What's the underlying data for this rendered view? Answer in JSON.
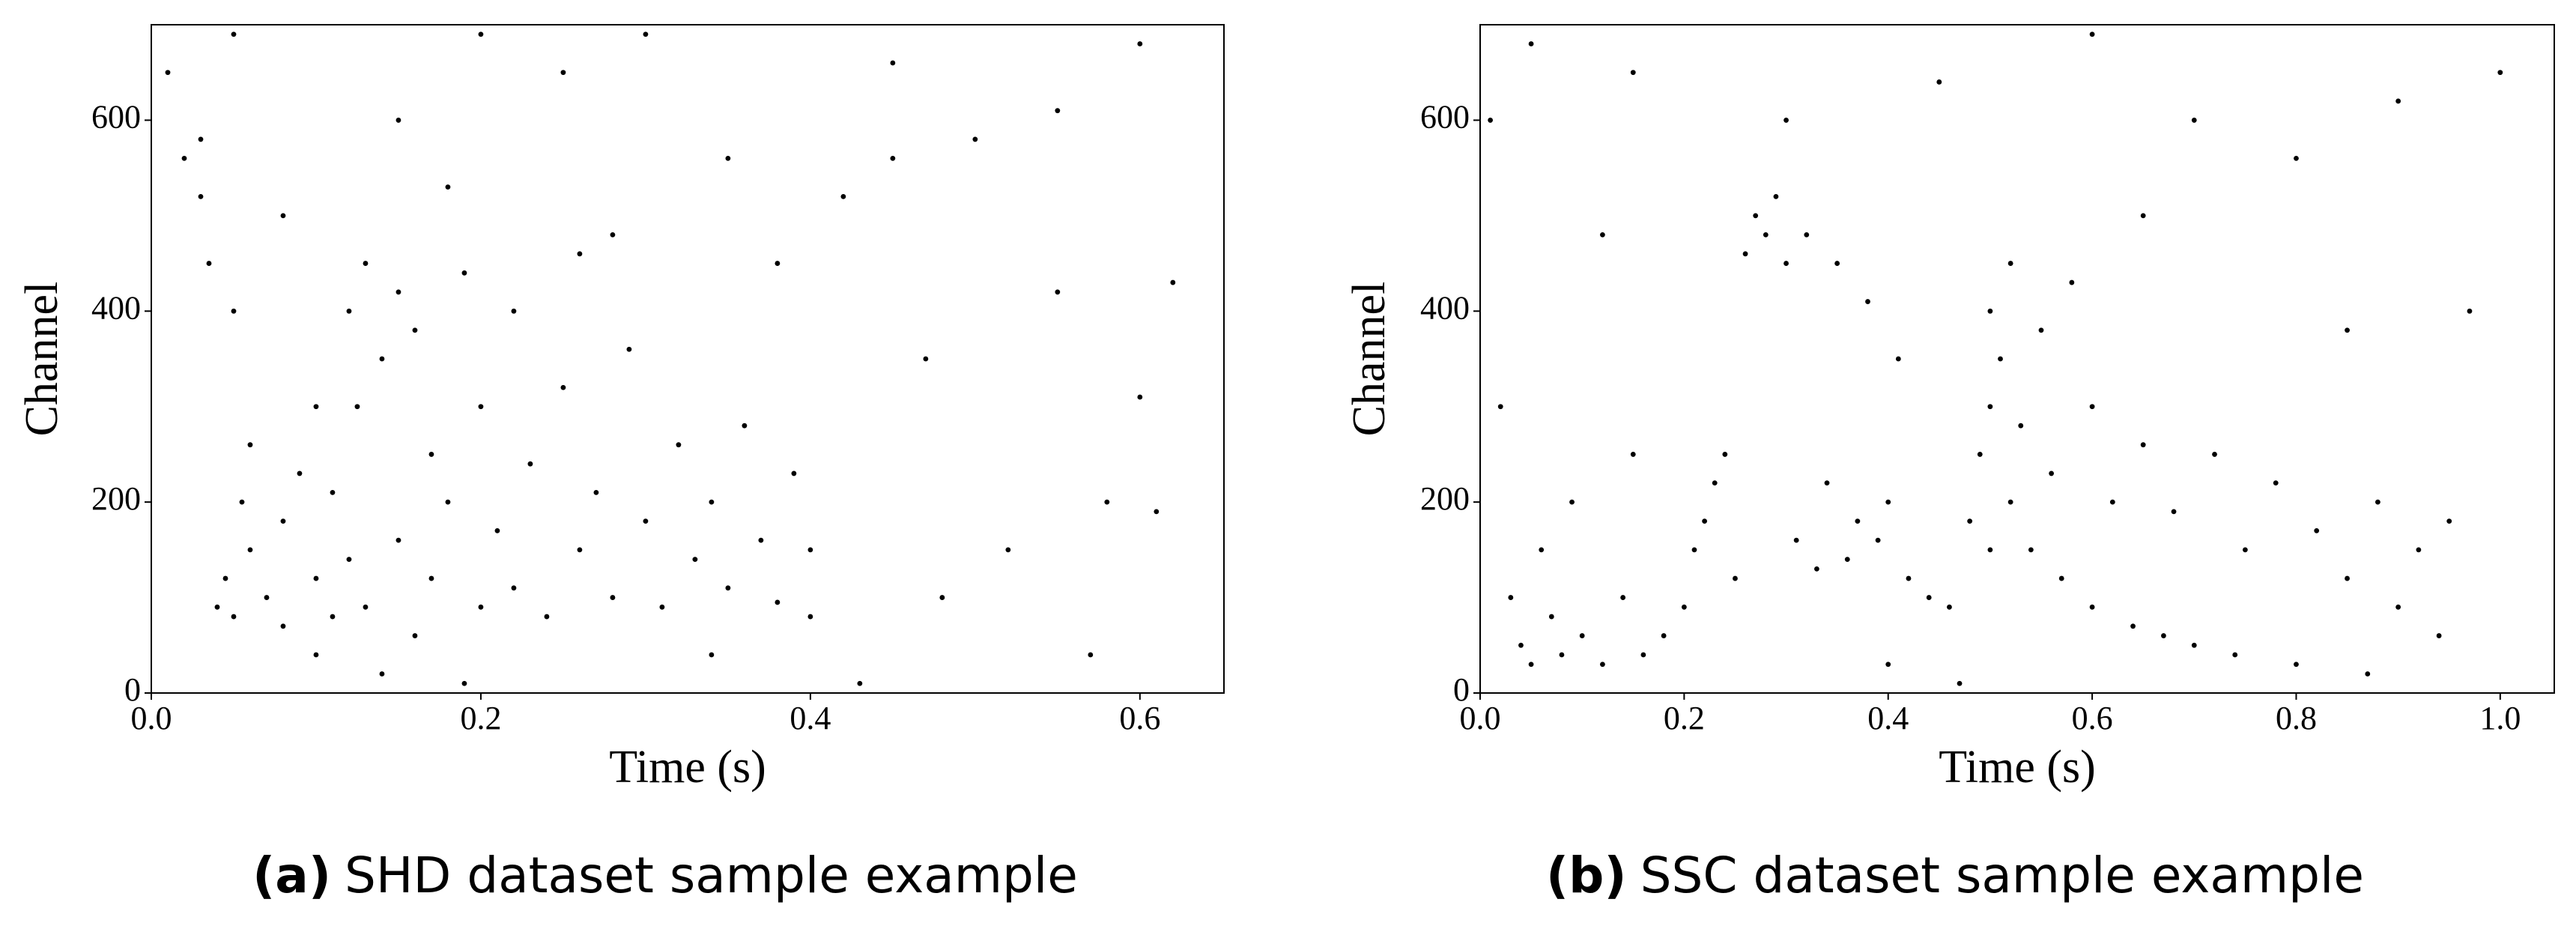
{
  "chart_data": [
    {
      "type": "scatter",
      "caption_label": "(a)",
      "caption": "SHD dataset sample example",
      "xlabel": "Time (s)",
      "ylabel": "Channel",
      "color": "#000000",
      "xlim": [
        0,
        0.651
      ],
      "ylim": [
        0,
        700
      ],
      "xticks": [
        {
          "value": 0,
          "label": "0.0"
        },
        0.2,
        0.4,
        0.6
      ],
      "yticks": [
        0,
        200,
        400,
        600
      ],
      "x": [
        0.01,
        0.02,
        0.03,
        0.03,
        0.035,
        0.04,
        0.045,
        0.05,
        0.055,
        0.06,
        0.06,
        0.07,
        0.08,
        0.08,
        0.09,
        0.1,
        0.1,
        0.11,
        0.11,
        0.12,
        0.12,
        0.125,
        0.13,
        0.13,
        0.14,
        0.14,
        0.15,
        0.15,
        0.16,
        0.16,
        0.17,
        0.17,
        0.18,
        0.19,
        0.2,
        0.2,
        0.21,
        0.22,
        0.22,
        0.23,
        0.24,
        0.25,
        0.26,
        0.27,
        0.28,
        0.29,
        0.3,
        0.31,
        0.32,
        0.33,
        0.34,
        0.34,
        0.35,
        0.36,
        0.37,
        0.38,
        0.39,
        0.4,
        0.4,
        0.42,
        0.43,
        0.45,
        0.47,
        0.5,
        0.52,
        0.55,
        0.57,
        0.58,
        0.6,
        0.61,
        0.62,
        0.05,
        0.2,
        0.3,
        0.15,
        0.25,
        0.35,
        0.45,
        0.55,
        0.6,
        0.08,
        0.18,
        0.28,
        0.05,
        0.1,
        0.19,
        0.26,
        0.38,
        0.48
      ],
      "values": [
        650,
        560,
        580,
        520,
        450,
        90,
        120,
        80,
        200,
        150,
        260,
        100,
        180,
        70,
        230,
        120,
        300,
        80,
        210,
        400,
        140,
        300,
        450,
        90,
        350,
        20,
        420,
        160,
        380,
        60,
        250,
        120,
        200,
        440,
        90,
        300,
        170,
        400,
        110,
        240,
        80,
        320,
        150,
        210,
        100,
        360,
        180,
        90,
        260,
        140,
        40,
        200,
        110,
        280,
        160,
        95,
        230,
        150,
        80,
        520,
        10,
        560,
        350,
        580,
        150,
        420,
        40,
        200,
        310,
        190,
        430,
        690,
        690,
        690,
        600,
        650,
        560,
        660,
        610,
        680,
        500,
        530,
        480,
        400,
        40,
        10,
        460,
        450,
        100
      ]
    },
    {
      "type": "scatter",
      "caption_label": "(b)",
      "caption": "SSC dataset sample example",
      "xlabel": "Time (s)",
      "ylabel": "Channel",
      "color": "#000000",
      "xlim": [
        0,
        1.053
      ],
      "ylim": [
        0,
        700
      ],
      "xticks": [
        {
          "value": 0,
          "label": "0.0"
        },
        0.2,
        0.4,
        0.6,
        0.8,
        {
          "value": 1,
          "label": "1.0"
        }
      ],
      "yticks": [
        0,
        200,
        400,
        600
      ],
      "x": [
        0.01,
        0.02,
        0.03,
        0.04,
        0.05,
        0.06,
        0.07,
        0.08,
        0.09,
        0.1,
        0.12,
        0.14,
        0.15,
        0.16,
        0.18,
        0.2,
        0.21,
        0.22,
        0.23,
        0.24,
        0.25,
        0.26,
        0.27,
        0.28,
        0.29,
        0.3,
        0.31,
        0.32,
        0.33,
        0.34,
        0.35,
        0.36,
        0.37,
        0.38,
        0.39,
        0.4,
        0.41,
        0.42,
        0.44,
        0.46,
        0.48,
        0.49,
        0.5,
        0.5,
        0.51,
        0.52,
        0.52,
        0.53,
        0.54,
        0.55,
        0.56,
        0.57,
        0.58,
        0.6,
        0.6,
        0.62,
        0.64,
        0.65,
        0.67,
        0.68,
        0.7,
        0.72,
        0.74,
        0.75,
        0.78,
        0.8,
        0.82,
        0.85,
        0.87,
        0.88,
        0.9,
        0.92,
        0.94,
        0.95,
        0.97,
        1.0,
        0.05,
        0.15,
        0.3,
        0.45,
        0.6,
        0.7,
        0.8,
        0.9,
        0.12,
        0.4,
        0.47,
        0.65,
        0.85,
        0.5
      ],
      "values": [
        600,
        300,
        100,
        50,
        30,
        150,
        80,
        40,
        200,
        60,
        30,
        100,
        250,
        40,
        60,
        90,
        150,
        180,
        220,
        250,
        120,
        460,
        500,
        480,
        520,
        450,
        160,
        480,
        130,
        220,
        450,
        140,
        180,
        410,
        160,
        200,
        350,
        120,
        100,
        90,
        180,
        250,
        300,
        400,
        350,
        200,
        450,
        280,
        150,
        380,
        230,
        120,
        430,
        300,
        90,
        200,
        70,
        260,
        60,
        190,
        50,
        250,
        40,
        150,
        220,
        30,
        170,
        120,
        20,
        200,
        90,
        150,
        60,
        180,
        400,
        650,
        680,
        650,
        600,
        640,
        690,
        600,
        560,
        620,
        480,
        30,
        10,
        500,
        380,
        150
      ]
    }
  ]
}
